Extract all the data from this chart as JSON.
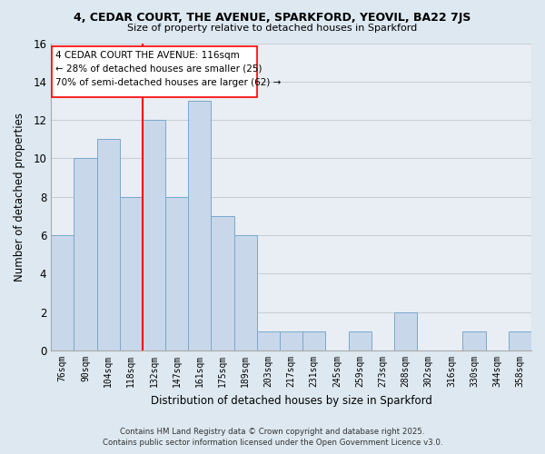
{
  "title": "4, CEDAR COURT, THE AVENUE, SPARKFORD, YEOVIL, BA22 7JS",
  "subtitle": "Size of property relative to detached houses in Sparkford",
  "xlabel": "Distribution of detached houses by size in Sparkford",
  "ylabel": "Number of detached properties",
  "bar_color": "#c8d8ea",
  "bar_edge_color": "#7aa8cc",
  "background_color": "#dde8f0",
  "plot_bg_color": "#e8eef4",
  "grid_color": "#c8d0d8",
  "categories": [
    "76sqm",
    "90sqm",
    "104sqm",
    "118sqm",
    "132sqm",
    "147sqm",
    "161sqm",
    "175sqm",
    "189sqm",
    "203sqm",
    "217sqm",
    "231sqm",
    "245sqm",
    "259sqm",
    "273sqm",
    "288sqm",
    "302sqm",
    "316sqm",
    "330sqm",
    "344sqm",
    "358sqm"
  ],
  "values": [
    6,
    10,
    11,
    8,
    12,
    8,
    13,
    7,
    6,
    1,
    1,
    1,
    0,
    1,
    0,
    2,
    0,
    0,
    1,
    0,
    1
  ],
  "ylim": [
    0,
    16
  ],
  "yticks": [
    0,
    2,
    4,
    6,
    8,
    10,
    12,
    14,
    16
  ],
  "property_line_x": 3.5,
  "property_line_label": "4 CEDAR COURT THE AVENUE: 116sqm",
  "annotation_line2": "← 28% of detached houses are smaller (25)",
  "annotation_line3": "70% of semi-detached houses are larger (62) →",
  "footnote1": "Contains HM Land Registry data © Crown copyright and database right 2025.",
  "footnote2": "Contains public sector information licensed under the Open Government Licence v3.0."
}
